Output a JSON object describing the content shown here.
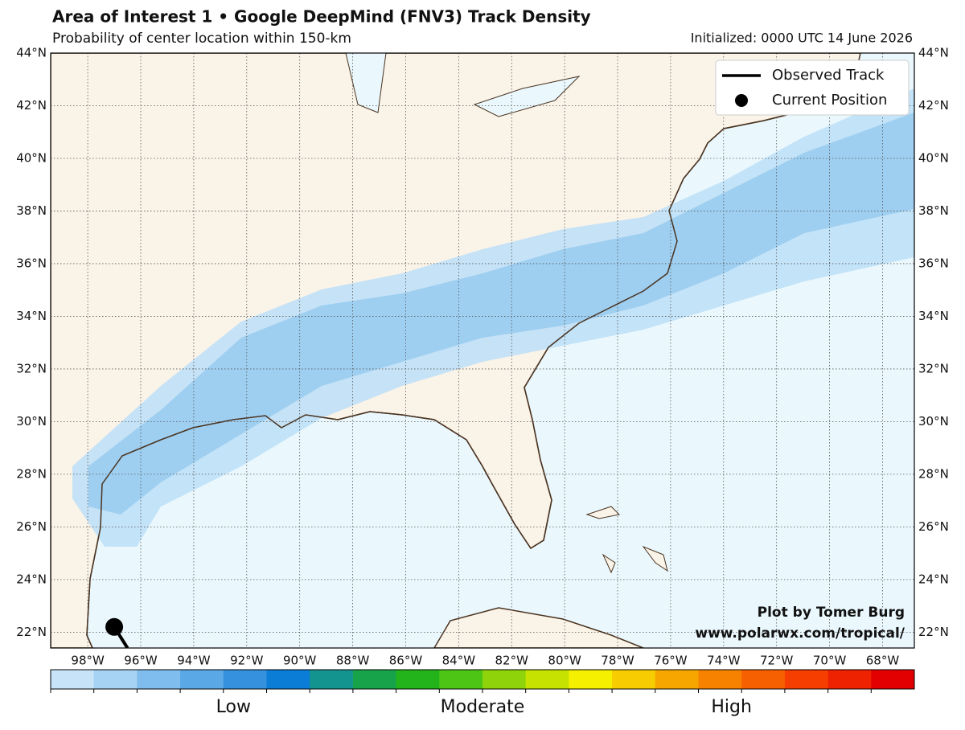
{
  "header": {
    "title": "Area of Interest 1 • Google DeepMind (FNV3) Track Density",
    "subtitle": "Probability of center location within 150-km",
    "initialized": "Initialized: 0000 UTC 14 June 2026"
  },
  "map": {
    "lon_range": [
      -99.4,
      -66.8
    ],
    "lat_range": [
      21.4,
      44
    ],
    "lat_ticks": [
      {
        "value": 22,
        "label": "22°N"
      },
      {
        "value": 24,
        "label": "24°N"
      },
      {
        "value": 26,
        "label": "26°N"
      },
      {
        "value": 28,
        "label": "28°N"
      },
      {
        "value": 30,
        "label": "30°N"
      },
      {
        "value": 32,
        "label": "32°N"
      },
      {
        "value": 34,
        "label": "34°N"
      },
      {
        "value": 36,
        "label": "36°N"
      },
      {
        "value": 38,
        "label": "38°N"
      },
      {
        "value": 40,
        "label": "40°N"
      },
      {
        "value": 42,
        "label": "42°N"
      },
      {
        "value": 44,
        "label": "44°N"
      }
    ],
    "lon_ticks": [
      {
        "value": -98,
        "label": "98°W"
      },
      {
        "value": -96,
        "label": "96°W"
      },
      {
        "value": -94,
        "label": "94°W"
      },
      {
        "value": -92,
        "label": "92°W"
      },
      {
        "value": -90,
        "label": "90°W"
      },
      {
        "value": -88,
        "label": "88°W"
      },
      {
        "value": -86,
        "label": "86°W"
      },
      {
        "value": -84,
        "label": "84°W"
      },
      {
        "value": -82,
        "label": "82°W"
      },
      {
        "value": -80,
        "label": "80°W"
      },
      {
        "value": -78,
        "label": "78°W"
      },
      {
        "value": -76,
        "label": "76°W"
      },
      {
        "value": -74,
        "label": "74°W"
      },
      {
        "value": -72,
        "label": "72°W"
      },
      {
        "value": -70,
        "label": "70°W"
      },
      {
        "value": -68,
        "label": "68°W"
      }
    ],
    "observed_track": {
      "lon": [
        -97.0,
        -96.5
      ],
      "lat": [
        22.2,
        21.4
      ]
    },
    "current_position": {
      "lon": -97.0,
      "lat": 22.2
    }
  },
  "legend": {
    "entries": [
      "Observed Track",
      "Current Position"
    ]
  },
  "credits": [
    "Plot by Tomer Burg",
    "www.polarwx.com/tropical/"
  ],
  "colorbar": {
    "colors": [
      "#c6e3f8",
      "#a6d2f3",
      "#7fbdee",
      "#5aa9e6",
      "#3591de",
      "#0b7dd6",
      "#14948f",
      "#17a34a",
      "#22b41a",
      "#4cc514",
      "#8fd40a",
      "#c5e200",
      "#f4f000",
      "#f7cc00",
      "#f7a600",
      "#f78200",
      "#f76000",
      "#f53e00",
      "#ee2200",
      "#e30000"
    ],
    "labels": [
      "Low",
      "Moderate",
      "High"
    ]
  }
}
